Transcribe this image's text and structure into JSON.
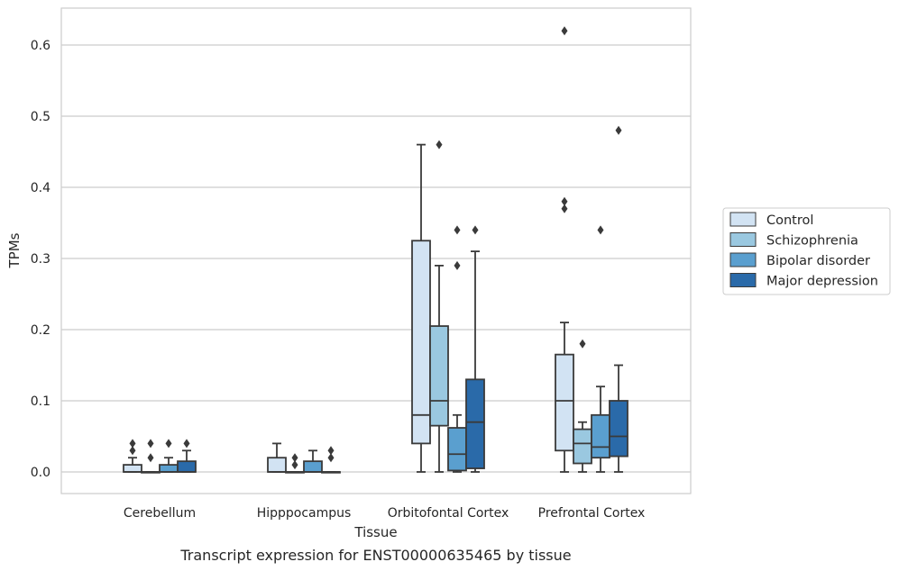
{
  "chart_data": {
    "type": "box",
    "title": "",
    "caption": "Transcript expression for ENST00000635465 by tissue",
    "xlabel": "Tissue",
    "ylabel": "TPMs",
    "ylim": [
      -0.03,
      0.65
    ],
    "yticks": [
      0.0,
      0.1,
      0.2,
      0.3,
      0.4,
      0.5,
      0.6
    ],
    "ytick_labels": [
      "0.0",
      "0.1",
      "0.2",
      "0.3",
      "0.4",
      "0.5",
      "0.6"
    ],
    "grid": "horizontal",
    "legend_placement": "outside-right",
    "categories": [
      "Cerebellum",
      "Hipppocampus",
      "Orbitofontal Cortex",
      "Prefrontal Cortex"
    ],
    "series": [
      {
        "name": "Control",
        "color": "#d2e3f3",
        "boxes": [
          {
            "min": 0.0,
            "q1": 0.0,
            "median": 0.0,
            "q3": 0.01,
            "max": 0.02,
            "outliers": [
              0.03,
              0.04
            ]
          },
          {
            "min": 0.0,
            "q1": 0.0,
            "median": 0.0,
            "q3": 0.02,
            "max": 0.04,
            "outliers": []
          },
          {
            "min": 0.0,
            "q1": 0.04,
            "median": 0.08,
            "q3": 0.325,
            "max": 0.46,
            "outliers": []
          },
          {
            "min": 0.0,
            "q1": 0.03,
            "median": 0.1,
            "q3": 0.165,
            "max": 0.21,
            "outliers": [
              0.37,
              0.38,
              0.62
            ]
          }
        ]
      },
      {
        "name": "Schizophrenia",
        "color": "#9ac8e0",
        "boxes": [
          {
            "min": 0.0,
            "q1": 0.0,
            "median": 0.0,
            "q3": 0.0,
            "max": 0.0,
            "outliers": [
              0.02,
              0.04
            ]
          },
          {
            "min": 0.0,
            "q1": 0.0,
            "median": 0.0,
            "q3": 0.0,
            "max": 0.0,
            "outliers": [
              0.01,
              0.02
            ]
          },
          {
            "min": 0.0,
            "q1": 0.065,
            "median": 0.1,
            "q3": 0.205,
            "max": 0.29,
            "outliers": [
              0.46
            ]
          },
          {
            "min": 0.0,
            "q1": 0.012,
            "median": 0.04,
            "q3": 0.06,
            "max": 0.07,
            "outliers": [
              0.18
            ]
          }
        ]
      },
      {
        "name": "Bipolar disorder",
        "color": "#5a9fcf",
        "boxes": [
          {
            "min": 0.0,
            "q1": 0.0,
            "median": 0.0,
            "q3": 0.01,
            "max": 0.02,
            "outliers": [
              0.04
            ]
          },
          {
            "min": 0.0,
            "q1": 0.0,
            "median": 0.0,
            "q3": 0.015,
            "max": 0.03,
            "outliers": []
          },
          {
            "min": 0.0,
            "q1": 0.002,
            "median": 0.025,
            "q3": 0.062,
            "max": 0.08,
            "outliers": [
              0.29,
              0.34
            ]
          },
          {
            "min": 0.0,
            "q1": 0.02,
            "median": 0.035,
            "q3": 0.08,
            "max": 0.12,
            "outliers": [
              0.34
            ]
          }
        ]
      },
      {
        "name": "Major depression",
        "color": "#2a6aa9",
        "boxes": [
          {
            "min": 0.0,
            "q1": 0.0,
            "median": 0.0,
            "q3": 0.015,
            "max": 0.03,
            "outliers": [
              0.04
            ]
          },
          {
            "min": 0.0,
            "q1": 0.0,
            "median": 0.0,
            "q3": 0.0,
            "max": 0.0,
            "outliers": [
              0.02,
              0.03
            ]
          },
          {
            "min": 0.0,
            "q1": 0.005,
            "median": 0.07,
            "q3": 0.13,
            "max": 0.31,
            "outliers": [
              0.34
            ]
          },
          {
            "min": 0.0,
            "q1": 0.022,
            "median": 0.05,
            "q3": 0.1,
            "max": 0.15,
            "outliers": [
              0.48
            ]
          }
        ]
      }
    ]
  }
}
